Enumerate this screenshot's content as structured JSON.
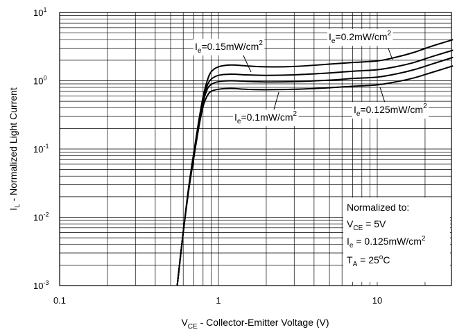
{
  "chart_data": {
    "type": "line",
    "xlabel": {
      "main": "V",
      "sub": "CE",
      "rest": " - Collector-Emitter Voltage (V)"
    },
    "ylabel": {
      "main": "I",
      "sub": "L",
      "rest": " - Normalized Light Current"
    },
    "x_scale": "log",
    "y_scale": "log",
    "xlim": [
      0.1,
      30
    ],
    "ylim": [
      0.001,
      10
    ],
    "x_ticks": [
      {
        "value": 0.1,
        "label": "0.1"
      },
      {
        "value": 1,
        "label": "1"
      },
      {
        "value": 10,
        "label": "10"
      }
    ],
    "y_ticks": [
      {
        "value": 10,
        "base": "10",
        "exp": "1"
      },
      {
        "value": 1,
        "base": "10",
        "exp": "0"
      },
      {
        "value": 0.1,
        "base": "10",
        "exp": "-1"
      },
      {
        "value": 0.01,
        "base": "10",
        "exp": "-2"
      },
      {
        "value": 0.001,
        "base": "10",
        "exp": "-3"
      }
    ],
    "grid": true,
    "series": [
      {
        "name": "Ie=0.2mW/cm2",
        "label": {
          "main": "I",
          "sub": "e",
          "text": "=0.2mW/cm",
          "sup": "2"
        },
        "points": [
          [
            0.55,
            0.001
          ],
          [
            0.6,
            0.006
          ],
          [
            0.65,
            0.028
          ],
          [
            0.7,
            0.09
          ],
          [
            0.75,
            0.25
          ],
          [
            0.8,
            0.58
          ],
          [
            0.85,
            1.0
          ],
          [
            0.9,
            1.35
          ],
          [
            1.0,
            1.6
          ],
          [
            1.2,
            1.7
          ],
          [
            1.5,
            1.65
          ],
          [
            2,
            1.6
          ],
          [
            3,
            1.62
          ],
          [
            5,
            1.75
          ],
          [
            7,
            1.85
          ],
          [
            10,
            1.95
          ],
          [
            13,
            2.2
          ],
          [
            17,
            2.6
          ],
          [
            22,
            3.2
          ],
          [
            30,
            4.0
          ]
        ]
      },
      {
        "name": "Ie=0.15mW/cm2",
        "label": {
          "main": "I",
          "sub": "e",
          "text": "=0.15mW/cm",
          "sup": "2"
        },
        "points": [
          [
            0.55,
            0.001
          ],
          [
            0.6,
            0.006
          ],
          [
            0.65,
            0.027
          ],
          [
            0.7,
            0.085
          ],
          [
            0.75,
            0.23
          ],
          [
            0.8,
            0.52
          ],
          [
            0.85,
            0.85
          ],
          [
            0.9,
            1.05
          ],
          [
            1.0,
            1.2
          ],
          [
            1.2,
            1.25
          ],
          [
            1.5,
            1.22
          ],
          [
            2,
            1.2
          ],
          [
            3,
            1.22
          ],
          [
            5,
            1.3
          ],
          [
            7,
            1.38
          ],
          [
            10,
            1.45
          ],
          [
            13,
            1.6
          ],
          [
            17,
            1.85
          ],
          [
            22,
            2.25
          ],
          [
            30,
            2.8
          ]
        ]
      },
      {
        "name": "Ie=0.125mW/cm2",
        "label": {
          "main": "I",
          "sub": "e",
          "text": "=0.125mW/cm",
          "sup": "2"
        },
        "points": [
          [
            0.55,
            0.001
          ],
          [
            0.6,
            0.006
          ],
          [
            0.65,
            0.026
          ],
          [
            0.7,
            0.08
          ],
          [
            0.75,
            0.22
          ],
          [
            0.8,
            0.48
          ],
          [
            0.85,
            0.75
          ],
          [
            0.9,
            0.88
          ],
          [
            1.0,
            0.97
          ],
          [
            1.2,
            1.0
          ],
          [
            1.5,
            0.98
          ],
          [
            2,
            0.96
          ],
          [
            3,
            0.97
          ],
          [
            5,
            1.02
          ],
          [
            7,
            1.08
          ],
          [
            10,
            1.13
          ],
          [
            13,
            1.25
          ],
          [
            17,
            1.45
          ],
          [
            22,
            1.75
          ],
          [
            30,
            2.2
          ]
        ]
      },
      {
        "name": "Ie=0.1mW/cm2",
        "label": {
          "main": "I",
          "sub": "e",
          "text": "=0.1mW/cm",
          "sup": "2"
        },
        "points": [
          [
            0.55,
            0.001
          ],
          [
            0.6,
            0.006
          ],
          [
            0.65,
            0.025
          ],
          [
            0.7,
            0.075
          ],
          [
            0.75,
            0.2
          ],
          [
            0.8,
            0.42
          ],
          [
            0.85,
            0.6
          ],
          [
            0.9,
            0.7
          ],
          [
            1.0,
            0.75
          ],
          [
            1.2,
            0.77
          ],
          [
            1.5,
            0.75
          ],
          [
            2,
            0.74
          ],
          [
            3,
            0.75
          ],
          [
            5,
            0.79
          ],
          [
            7,
            0.83
          ],
          [
            10,
            0.87
          ],
          [
            13,
            0.96
          ],
          [
            17,
            1.1
          ],
          [
            22,
            1.32
          ],
          [
            30,
            1.65
          ]
        ]
      }
    ],
    "annotation": {
      "title": "Normalized to:",
      "lines": [
        {
          "main": "V",
          "sub": "CE",
          "rest": " = 5V",
          "sup": ""
        },
        {
          "main": "I",
          "sub": "e",
          "rest": " = 0.125mW/cm",
          "sup": "2"
        },
        {
          "main": "T",
          "sub": "A",
          "rest": " = 25",
          "sup": "o",
          "tail": "C"
        }
      ]
    }
  }
}
